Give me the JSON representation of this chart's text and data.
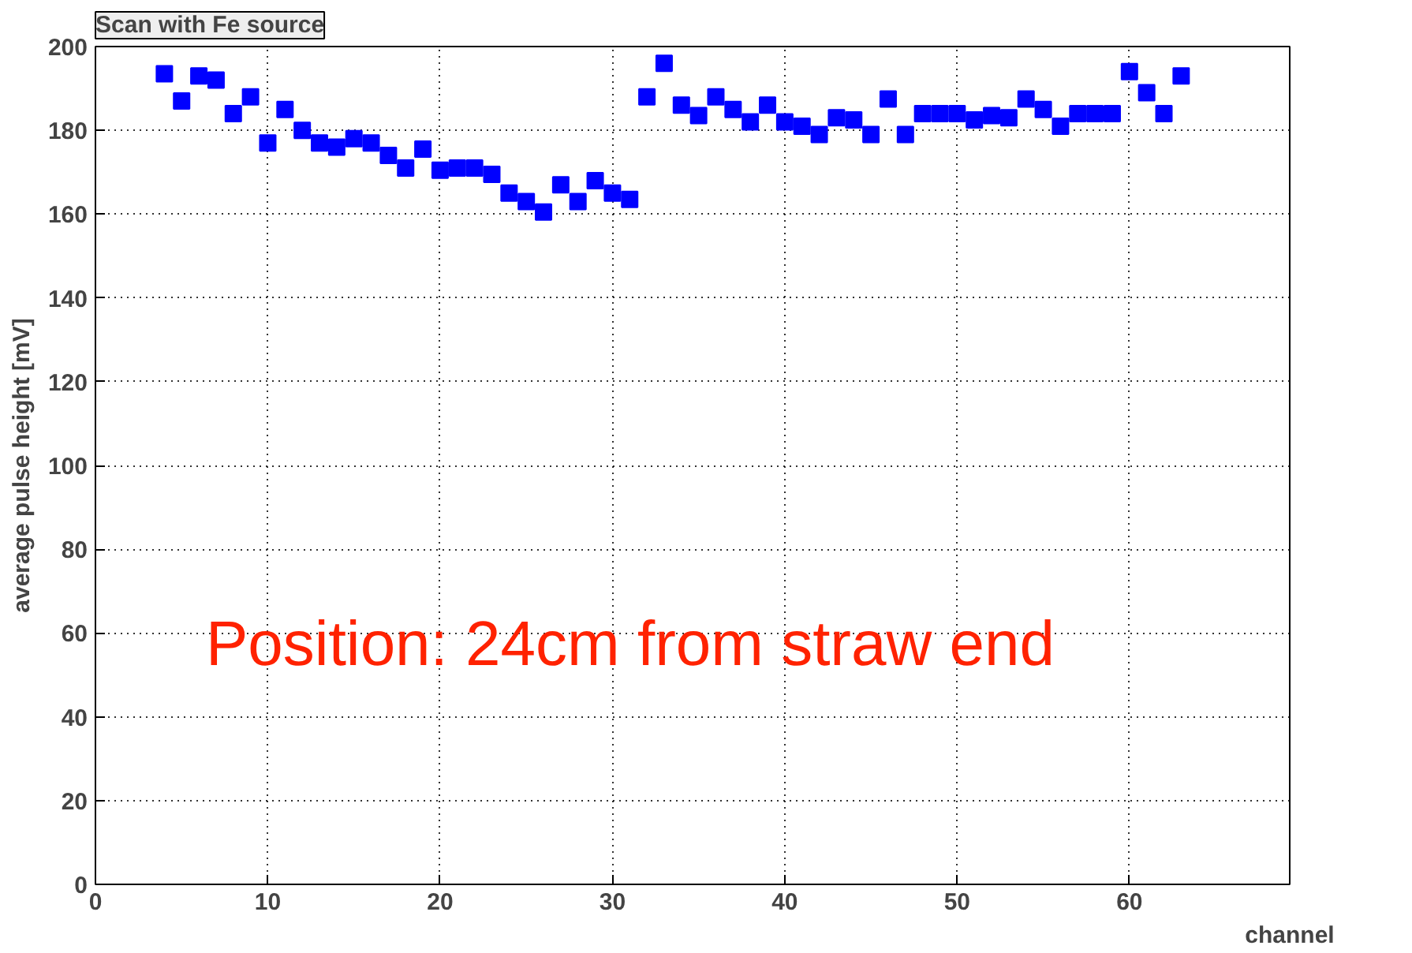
{
  "chart_data": {
    "type": "scatter",
    "title": "Scan with Fe source",
    "xlabel": "channel",
    "ylabel": "average pulse height [mV]",
    "x": [
      4,
      5,
      6,
      7,
      8,
      9,
      10,
      11,
      12,
      13,
      14,
      15,
      16,
      17,
      18,
      19,
      20,
      21,
      22,
      23,
      24,
      25,
      26,
      27,
      28,
      29,
      30,
      31,
      32,
      33,
      34,
      35,
      36,
      37,
      38,
      39,
      40,
      41,
      42,
      43,
      44,
      45,
      46,
      47,
      48,
      49,
      50,
      51,
      52,
      53,
      54,
      55,
      56,
      57,
      58,
      59,
      60,
      61,
      62,
      63
    ],
    "series": [
      {
        "color": "#0000ff",
        "values": [
          193.5,
          187,
          193,
          192,
          184,
          188,
          177,
          185,
          180,
          177,
          176,
          178,
          177,
          174,
          171,
          175.5,
          170.5,
          171,
          171,
          169.5,
          165,
          163,
          160.5,
          167,
          163,
          168,
          165,
          163.5,
          188,
          196,
          186,
          183.5,
          188,
          185,
          182,
          186,
          182,
          181,
          179,
          183,
          182.5,
          179,
          187.5,
          179,
          184,
          184,
          184,
          182.5,
          183.5,
          183,
          187.5,
          185,
          181,
          184,
          184,
          184,
          194,
          189,
          184,
          193
        ]
      }
    ],
    "xlim": [
      0,
      69.3
    ],
    "ylim": [
      0,
      200
    ],
    "xticks": [
      0,
      10,
      20,
      30,
      40,
      50,
      60
    ],
    "yticks": [
      0,
      20,
      40,
      60,
      80,
      100,
      120,
      140,
      160,
      180,
      200
    ],
    "grid": true,
    "marker": "square",
    "annotations": [
      "Position: 24cm from straw end"
    ]
  }
}
